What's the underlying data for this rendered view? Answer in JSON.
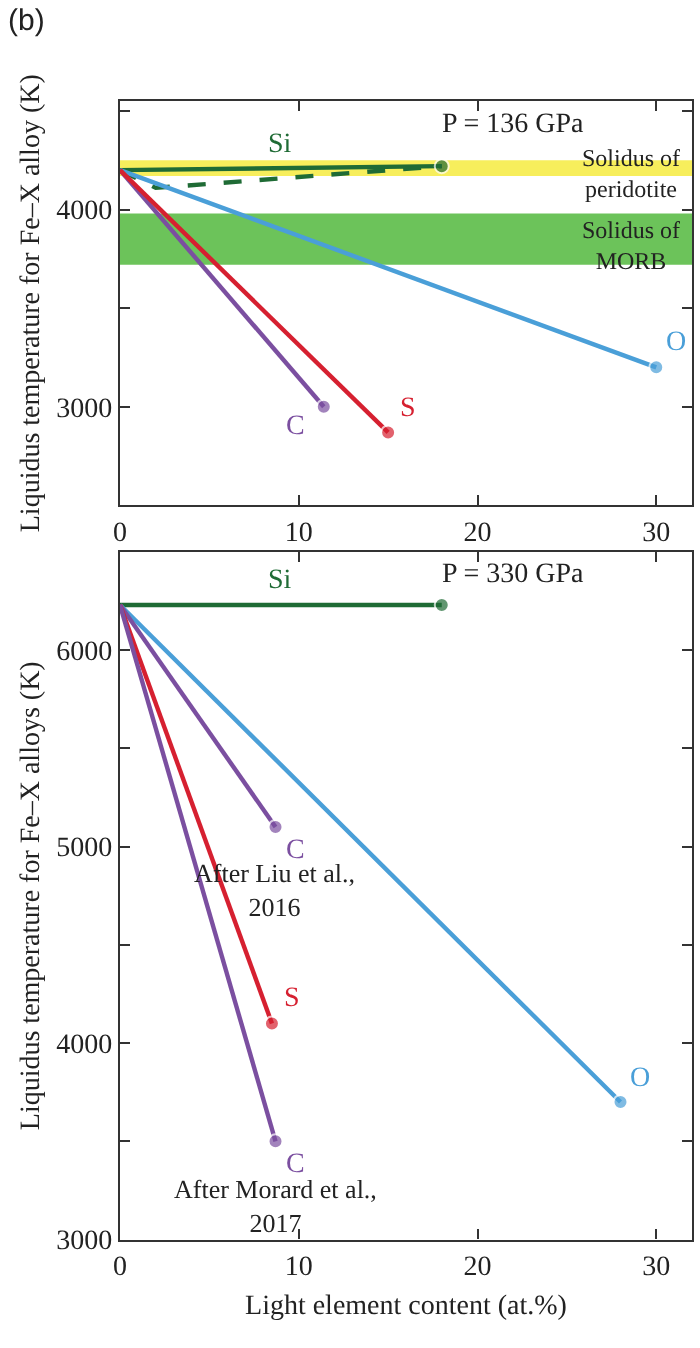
{
  "chart_data": [
    {
      "type": "line",
      "title": "(b)",
      "ylabel": "Liquidus temperature for Fe–X alloy (K)",
      "xlim": [
        0,
        32
      ],
      "xticks": [
        0,
        10,
        20,
        30
      ],
      "ylim": [
        2500,
        4550
      ],
      "yticks": [
        {
          "value": 3000,
          "label": "3000"
        },
        {
          "value": 3500,
          "label": null
        },
        {
          "value": 4000,
          "label": "4000"
        },
        {
          "value": 4500,
          "label": null
        }
      ],
      "grid": false,
      "marker": "circle",
      "annotations": [
        "P = 136 GPa"
      ],
      "bands": [
        {
          "axis": "y",
          "from": 4170,
          "to": 4250,
          "label": "Solidus of\nperidotite",
          "color": "#f7ee5c"
        },
        {
          "axis": "y",
          "from": 3720,
          "to": 3980,
          "label": "Solidus of\nMORB",
          "color": "#6cc35a"
        }
      ],
      "series": [
        {
          "name": "Si",
          "color": "#1f6b35",
          "x": [
            0,
            18
          ],
          "values": [
            4200,
            4220
          ]
        },
        {
          "color": "#1f6b35",
          "x": [
            0,
            2,
            18
          ],
          "values": [
            4200,
            4110,
            4220
          ],
          "line_style": "dashed",
          "marker": "none"
        },
        {
          "name": "O",
          "color": "#4a9fd8",
          "x": [
            0,
            30
          ],
          "values": [
            4200,
            3200
          ]
        },
        {
          "name": "C",
          "color": "#7b4fa0",
          "x": [
            0,
            11.4
          ],
          "values": [
            4200,
            3000
          ]
        },
        {
          "name": "S",
          "color": "#d62030",
          "x": [
            0,
            15
          ],
          "values": [
            4200,
            2870
          ]
        }
      ]
    },
    {
      "type": "line",
      "ylabel": "Liquidus temperature for Fe–X alloys (K)",
      "xlabel": "Light element content (at.%)",
      "xlim": [
        0,
        32
      ],
      "xticks": [
        0,
        10,
        20,
        30
      ],
      "ylim": [
        3000,
        6500
      ],
      "yticks": [
        3000,
        {
          "value": 3500,
          "label": null
        },
        4000,
        {
          "value": 4500,
          "label": null
        },
        5000,
        {
          "value": 5500,
          "label": null
        },
        6000
      ],
      "grid": false,
      "marker": "circle",
      "annotations": [
        "P = 330 GPa",
        {
          "text": "After Liu et al.,\n2016",
          "x": 8.7,
          "y": 5100
        },
        {
          "text": "After Morard et al.,\n2017",
          "x": 8.7,
          "y": 3500
        }
      ],
      "series": [
        {
          "name": "Si",
          "color": "#1f6b35",
          "x": [
            0,
            18
          ],
          "values": [
            6230,
            6230
          ]
        },
        {
          "name": "O",
          "color": "#4a9fd8",
          "x": [
            0,
            28
          ],
          "values": [
            6230,
            3700
          ]
        },
        {
          "name": "C",
          "color": "#7b4fa0",
          "x": [
            0,
            8.7
          ],
          "values": [
            6230,
            5100
          ]
        },
        {
          "name": "S",
          "color": "#d62030",
          "x": [
            0,
            8.5
          ],
          "values": [
            6230,
            4100
          ]
        },
        {
          "name": "C",
          "color": "#7b4fa0",
          "x": [
            0,
            8.7
          ],
          "values": [
            6230,
            3500
          ]
        }
      ]
    }
  ]
}
